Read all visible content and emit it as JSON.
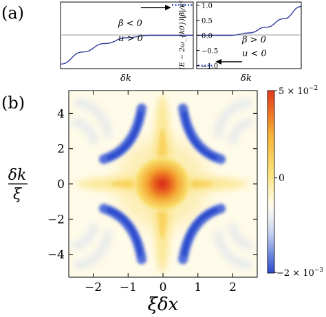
{
  "panel_a": {
    "label": "(a)",
    "left": {
      "xlabel": "δk",
      "annot_beta": "β < 0",
      "annot_u": "u > 0",
      "dotted_level": 1.0
    },
    "right": {
      "xlabel": "δk",
      "annot_beta": "β > 0",
      "annot_u": "u < 0",
      "dotted_level": -1.0
    },
    "shared_ylabel": "(E − 2ω_{k0})|β|/κ²"
  },
  "panel_b": {
    "label": "(b)",
    "xlabel": "ξδx",
    "ylabel_num": "δk",
    "ylabel_den": "ξ",
    "colorbar_labels": {
      "max": "5 × 10",
      "max_exp": "−2",
      "zero": "0",
      "min": "−2 × 10",
      "min_exp": "−3"
    }
  },
  "chart_data": [
    {
      "type": "line",
      "panel": "(a) left",
      "xlabel": "δk",
      "ylabel": "",
      "ylim": [
        -1.1,
        1.1
      ],
      "x": [
        -1.0,
        -0.75,
        -0.5,
        -0.25,
        0.0,
        0.25,
        0.5
      ],
      "values": [
        -0.95,
        -0.55,
        -0.27,
        -0.08,
        0.0,
        0.0,
        0.0
      ],
      "series": [
        {
          "name": "",
          "values": [
            -0.95,
            -0.55,
            -0.27,
            -0.08,
            0.0,
            0.0,
            0.0
          ]
        }
      ],
      "reference_lines": [
        0,
        1.0
      ],
      "annotations": [
        "β < 0",
        "u > 0"
      ]
    },
    {
      "type": "line",
      "panel": "(a) right",
      "xlabel": "δk",
      "ylabel": "(E − 2ω_{k0})|β|/κ²",
      "ylim": [
        -1.1,
        1.1
      ],
      "yticks": [
        -1.0,
        -0.5,
        0.0,
        0.5,
        1.0
      ],
      "x": [
        -0.5,
        -0.25,
        0.0,
        0.25,
        0.5,
        0.75,
        1.0
      ],
      "values": [
        0.0,
        0.0,
        0.0,
        0.08,
        0.27,
        0.55,
        0.95
      ],
      "series": [
        {
          "name": "",
          "values": [
            0.0,
            0.0,
            0.0,
            0.08,
            0.27,
            0.55,
            0.95
          ]
        }
      ],
      "reference_lines": [
        0,
        -1.0
      ],
      "annotations": [
        "β > 0",
        "u < 0"
      ]
    },
    {
      "type": "heatmap",
      "panel": "(b)",
      "xlabel": "ξδx",
      "ylabel": "δk/ξ",
      "xlim": [
        -2.7,
        2.7
      ],
      "ylim": [
        -5.3,
        5.3
      ],
      "xticks": [
        -2,
        -1,
        0,
        1,
        2
      ],
      "yticks": [
        -4,
        -2,
        0,
        2,
        4
      ],
      "colorbar": {
        "min": -0.002,
        "max": 0.05,
        "ticks": [
          "5 × 10^−2",
          "0",
          "−2 × 10^−3"
        ]
      },
      "grid": false
    }
  ]
}
